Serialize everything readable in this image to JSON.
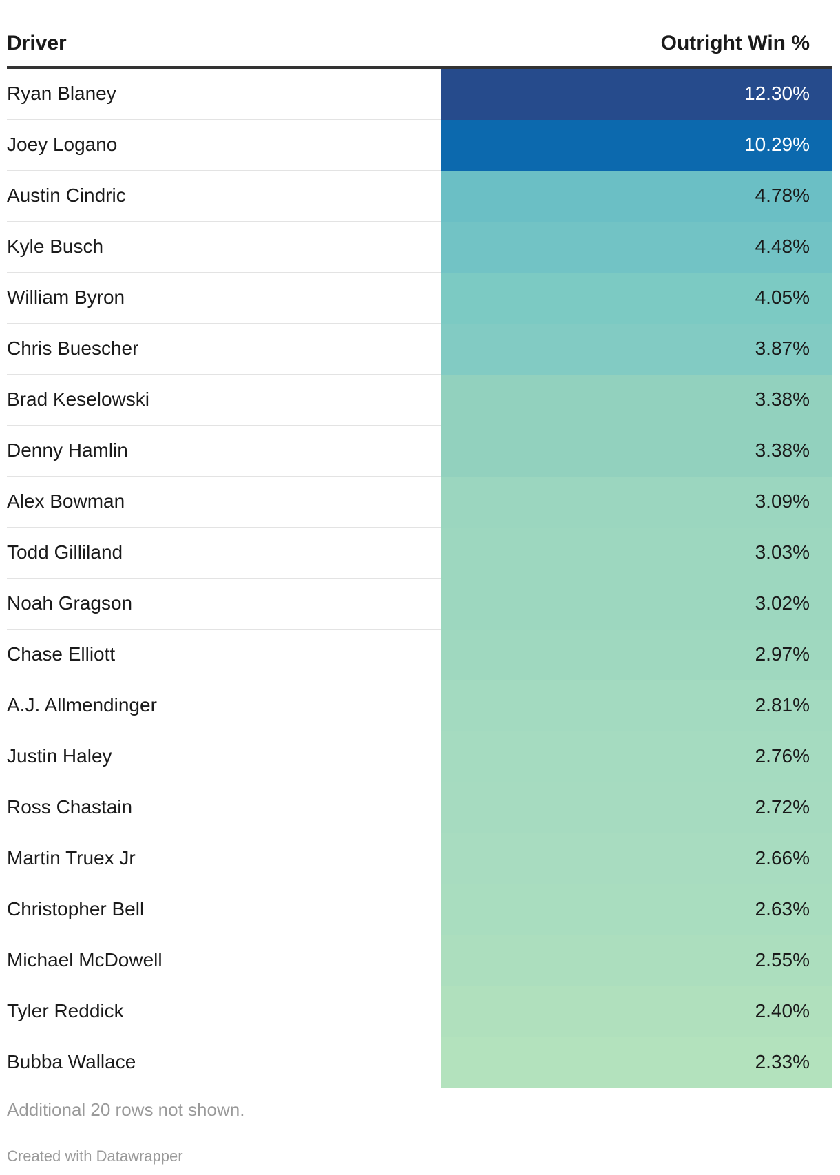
{
  "table": {
    "header_driver": "Driver",
    "header_win": "Outright Win %"
  },
  "chart_data": {
    "type": "table",
    "columns": [
      "Driver",
      "Outright Win %"
    ],
    "rows": [
      {
        "driver": "Ryan Blaney",
        "win": "12.30%",
        "value": 12.3,
        "color": "#264b8c",
        "text_color": "#ffffff"
      },
      {
        "driver": "Joey Logano",
        "win": "10.29%",
        "value": 10.29,
        "color": "#0c69ae",
        "text_color": "#ffffff"
      },
      {
        "driver": "Austin Cindric",
        "win": "4.78%",
        "value": 4.78,
        "color": "#6bbfc5",
        "text_color": "#1a1a1a"
      },
      {
        "driver": "Kyle Busch",
        "win": "4.48%",
        "value": 4.48,
        "color": "#72c3c5",
        "text_color": "#1a1a1a"
      },
      {
        "driver": "William Byron",
        "win": "4.05%",
        "value": 4.05,
        "color": "#7ccac3",
        "text_color": "#1a1a1a"
      },
      {
        "driver": "Chris Buescher",
        "win": "3.87%",
        "value": 3.87,
        "color": "#82cbc3",
        "text_color": "#1a1a1a"
      },
      {
        "driver": "Brad Keselowski",
        "win": "3.38%",
        "value": 3.38,
        "color": "#92d1be",
        "text_color": "#1a1a1a"
      },
      {
        "driver": "Denny Hamlin",
        "win": "3.38%",
        "value": 3.38,
        "color": "#92d1be",
        "text_color": "#1a1a1a"
      },
      {
        "driver": "Alex Bowman",
        "win": "3.09%",
        "value": 3.09,
        "color": "#9bd6bf",
        "text_color": "#1a1a1a"
      },
      {
        "driver": "Todd Gilliland",
        "win": "3.03%",
        "value": 3.03,
        "color": "#9dd7bf",
        "text_color": "#1a1a1a"
      },
      {
        "driver": "Noah Gragson",
        "win": "3.02%",
        "value": 3.02,
        "color": "#9dd7bf",
        "text_color": "#1a1a1a"
      },
      {
        "driver": "Chase Elliott",
        "win": "2.97%",
        "value": 2.97,
        "color": "#9fd8bf",
        "text_color": "#1a1a1a"
      },
      {
        "driver": "A.J. Allmendinger",
        "win": "2.81%",
        "value": 2.81,
        "color": "#a3dac0",
        "text_color": "#1a1a1a"
      },
      {
        "driver": "Justin Haley",
        "win": "2.76%",
        "value": 2.76,
        "color": "#a5dbc0",
        "text_color": "#1a1a1a"
      },
      {
        "driver": "Ross Chastain",
        "win": "2.72%",
        "value": 2.72,
        "color": "#a6dbc0",
        "text_color": "#1a1a1a"
      },
      {
        "driver": "Martin Truex Jr",
        "win": "2.66%",
        "value": 2.66,
        "color": "#a8dcc0",
        "text_color": "#1a1a1a"
      },
      {
        "driver": "Christopher Bell",
        "win": "2.63%",
        "value": 2.63,
        "color": "#a9ddbf",
        "text_color": "#1a1a1a"
      },
      {
        "driver": "Michael McDowell",
        "win": "2.55%",
        "value": 2.55,
        "color": "#acdebe",
        "text_color": "#1a1a1a"
      },
      {
        "driver": "Tyler Reddick",
        "win": "2.40%",
        "value": 2.4,
        "color": "#b0e0bd",
        "text_color": "#1a1a1a"
      },
      {
        "driver": "Bubba Wallace",
        "win": "2.33%",
        "value": 2.33,
        "color": "#b3e2bd",
        "text_color": "#1a1a1a"
      }
    ]
  },
  "footer": {
    "note": "Additional 20 rows not shown.",
    "credit": "Created with Datawrapper"
  }
}
